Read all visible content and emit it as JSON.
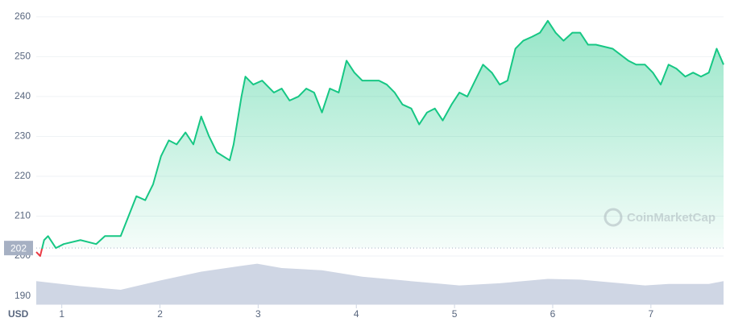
{
  "chart_data": {
    "type": "line",
    "currency": "USD",
    "watermark": "CoinMarketCap",
    "baseline": 202,
    "xlim": [
      0.74,
      7.74
    ],
    "xticks": [
      1,
      2,
      3,
      4,
      5,
      6,
      7
    ],
    "ylim": [
      187.9,
      263.2
    ],
    "yticks": [
      190,
      200,
      210,
      220,
      230,
      240,
      250,
      260
    ],
    "grid": true,
    "series": [
      {
        "color": "#16c784",
        "below_color": "#ea3943",
        "x": [
          0.74,
          0.78,
          0.82,
          0.86,
          0.94,
          1.02,
          1.19,
          1.35,
          1.44,
          1.6,
          1.68,
          1.76,
          1.85,
          1.93,
          2.01,
          2.09,
          2.17,
          2.26,
          2.34,
          2.42,
          2.5,
          2.58,
          2.71,
          2.75,
          2.83,
          2.87,
          2.95,
          3.04,
          3.16,
          3.24,
          3.32,
          3.41,
          3.49,
          3.57,
          3.65,
          3.73,
          3.82,
          3.9,
          3.98,
          4.06,
          4.23,
          4.31,
          4.39,
          4.47,
          4.56,
          4.64,
          4.72,
          4.8,
          4.88,
          4.97,
          5.05,
          5.13,
          5.21,
          5.29,
          5.38,
          5.46,
          5.54,
          5.62,
          5.7,
          5.79,
          5.87,
          5.95,
          6.03,
          6.11,
          6.2,
          6.28,
          6.36,
          6.44,
          6.61,
          6.77,
          6.85,
          6.94,
          7.02,
          7.1,
          7.18,
          7.26,
          7.35,
          7.43,
          7.51,
          7.59,
          7.67,
          7.74
        ],
        "values": [
          201,
          200,
          204,
          205,
          202,
          203,
          204,
          203,
          205,
          205,
          210,
          215,
          214,
          218,
          225,
          229,
          228,
          231,
          228,
          235,
          230,
          226,
          224,
          228,
          240,
          245,
          243,
          244,
          241,
          242,
          239,
          240,
          242,
          241,
          236,
          242,
          241,
          249,
          246,
          244,
          244,
          243,
          241,
          238,
          237,
          233,
          236,
          237,
          234,
          238,
          241,
          240,
          244,
          248,
          246,
          243,
          244,
          252,
          254,
          255,
          256,
          259,
          256,
          254,
          256,
          256,
          253,
          253,
          252,
          249,
          248,
          248,
          246,
          243,
          248,
          247,
          245,
          246,
          245,
          246,
          252,
          248
        ]
      }
    ],
    "volume": {
      "color": "#cfd6e4",
      "x": [
        0.74,
        1.19,
        1.6,
        2.01,
        2.42,
        2.83,
        2.99,
        3.24,
        3.65,
        4.06,
        4.47,
        4.88,
        5.05,
        5.46,
        5.95,
        6.28,
        6.61,
        6.94,
        7.18,
        7.59,
        7.74
      ],
      "values": [
        32,
        25,
        20,
        33,
        45,
        53,
        56,
        50,
        47,
        38,
        33,
        28,
        26,
        29,
        35,
        34,
        30,
        26,
        28,
        28,
        32
      ]
    }
  }
}
